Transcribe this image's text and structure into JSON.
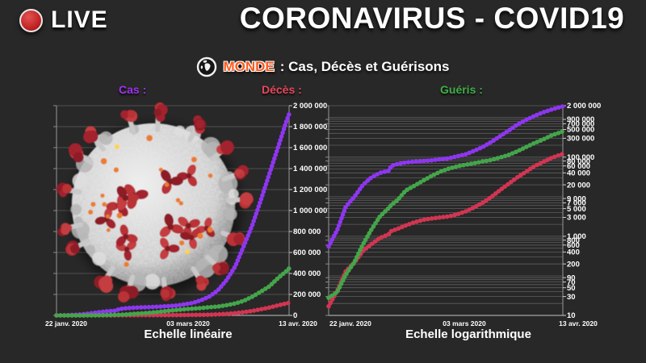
{
  "header": {
    "live_label": "LIVE",
    "live_color": "#c22424",
    "title": "CORONAVIRUS - COVID19"
  },
  "subtitle": {
    "globe_icon": "globe-earth-icon",
    "region": "MONDE",
    "region_color": "#ff5a1f",
    "caption": ": Cas, Décès et Guérisons"
  },
  "legend": [
    {
      "label": "Cas :",
      "color": "#a12ff0"
    },
    {
      "label": "Décès :",
      "color": "#e4475a"
    },
    {
      "label": "Guéris :",
      "color": "#3fae47"
    }
  ],
  "virus": {
    "name": "coronavirus-3d-render",
    "body_color": "#c2c2c2",
    "spike_color": "#a8242e",
    "dot_color": "#ec7c2e",
    "accent_yellow": "#ffd34d"
  },
  "theme": {
    "background": "#282828",
    "grid_color": "#5e5e5e",
    "text_color": "#ffffff"
  },
  "chart_data": {
    "type": "line",
    "x_unit": "days since 22 janv. 2020",
    "x": [
      0,
      3,
      6,
      9,
      12,
      15,
      18,
      21,
      22,
      24,
      27,
      30,
      33,
      36,
      39,
      42,
      45,
      48,
      51,
      54,
      57,
      60,
      63,
      66,
      69,
      72,
      75,
      78,
      81,
      82
    ],
    "x_tick_labels": [
      "22 janv. 2020",
      "03 mars 2020",
      "13 avr. 2020"
    ],
    "x_tick_pos": [
      0,
      41,
      82
    ],
    "series": [
      {
        "name": "Cas",
        "key": "cas",
        "color": "#8d36ef",
        "values": [
          555,
          1434,
          5578,
          9927,
          19881,
          30818,
          40150,
          45222,
          60370,
          66887,
          73260,
          76823,
          79561,
          82756,
          88369,
          93016,
          105586,
          118620,
          145193,
          181546,
          242500,
          337553,
          467653,
          660706,
          857487,
          1095917,
          1345101,
          1595350,
          1846680,
          1918138
        ]
      },
      {
        "name": "Décès",
        "key": "deces",
        "color": "#d23552",
        "values": [
          17,
          42,
          131,
          213,
          426,
          634,
          910,
          1118,
          1371,
          1523,
          1873,
          2251,
          2595,
          2814,
          2996,
          3160,
          3584,
          4262,
          5404,
          7126,
          9867,
          14651,
          21181,
          30652,
          42107,
          58787,
          74565,
          95455,
          114090,
          119483
        ]
      },
      {
        "name": "Guéris",
        "key": "gueris",
        "color": "#44a54a",
        "values": [
          28,
          39,
          107,
          222,
          623,
          1487,
          3219,
          5150,
          6295,
          8058,
          14376,
          18890,
          25227,
          33277,
          42716,
          50954,
          58358,
          64404,
          70251,
          78088,
          84975,
          97704,
          113770,
          139415,
          178034,
          225796,
          276515,
          353975,
          421722,
          448655
        ]
      }
    ],
    "charts": [
      {
        "title": "Echelle linéaire",
        "y_scale": "linear",
        "ylim": [
          0,
          2000000
        ],
        "grid": true,
        "y_ticks": [
          {
            "value": 2000000,
            "label": "2 000 000"
          },
          {
            "value": 1800000,
            "label": "1 800 000"
          },
          {
            "value": 1600000,
            "label": "1 600 000"
          },
          {
            "value": 1400000,
            "label": "1 400 000"
          },
          {
            "value": 1200000,
            "label": "1 200 000"
          },
          {
            "value": 1000000,
            "label": "1 000 000"
          },
          {
            "value": 800000,
            "label": "800 000"
          },
          {
            "value": 600000,
            "label": "600 000"
          },
          {
            "value": 400000,
            "label": "400 000"
          },
          {
            "value": 200000,
            "label": "200 000"
          },
          {
            "value": 0,
            "label": "0"
          }
        ]
      },
      {
        "title": "Echelle logarithmique",
        "y_scale": "log",
        "ylim": [
          10,
          2000000
        ],
        "grid": true,
        "y_ticks": [
          {
            "value": 2000000,
            "label": "2 000 000"
          },
          {
            "value": 900000,
            "label": "900 000"
          },
          {
            "value": 700000,
            "label": "700 000"
          },
          {
            "value": 500000,
            "label": "500 000"
          },
          {
            "value": 300000,
            "label": "300 000"
          },
          {
            "value": 100000,
            "label": "100 000"
          },
          {
            "value": 80000,
            "label": "80 000"
          },
          {
            "value": 60000,
            "label": "60 000"
          },
          {
            "value": 40000,
            "label": "40 000"
          },
          {
            "value": 20000,
            "label": "20 000"
          },
          {
            "value": 9000,
            "label": "9 000"
          },
          {
            "value": 7000,
            "label": "7 000"
          },
          {
            "value": 5000,
            "label": "5 000"
          },
          {
            "value": 3000,
            "label": "3 000"
          },
          {
            "value": 1000,
            "label": "1 000"
          },
          {
            "value": 800,
            "label": "800"
          },
          {
            "value": 600,
            "label": "600"
          },
          {
            "value": 400,
            "label": "400"
          },
          {
            "value": 200,
            "label": "200"
          },
          {
            "value": 90,
            "label": "90"
          },
          {
            "value": 70,
            "label": "70"
          },
          {
            "value": 50,
            "label": "50"
          },
          {
            "value": 30,
            "label": "30"
          },
          {
            "value": 10,
            "label": "10"
          }
        ]
      }
    ]
  }
}
